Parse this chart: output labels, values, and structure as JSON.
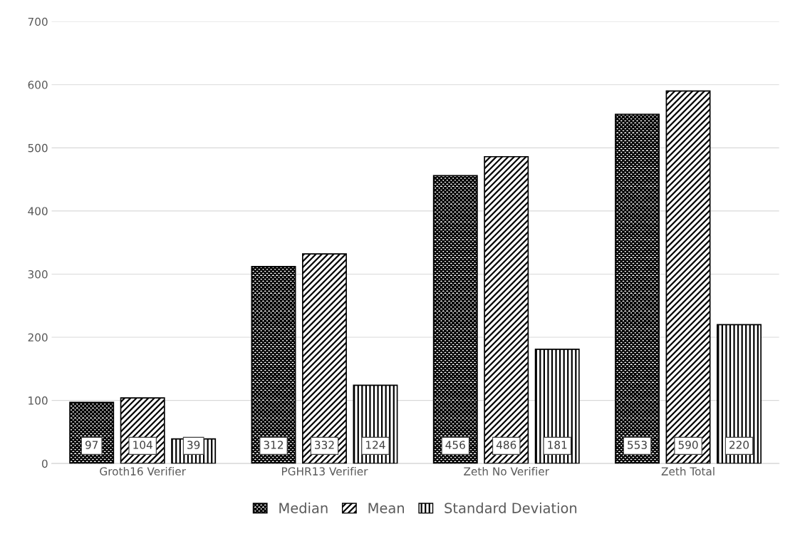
{
  "chart_data": {
    "type": "bar",
    "categories": [
      "Groth16 Verifier",
      "PGHR13 Verifier",
      "Zeth No Verifier",
      "Zeth Total"
    ],
    "series": [
      {
        "name": "Median",
        "color": "#000000",
        "values": [
          97,
          312,
          456,
          553
        ]
      },
      {
        "name": "Mean",
        "color": "#000000",
        "values": [
          104,
          332,
          486,
          590
        ]
      },
      {
        "name": "Standard Deviation",
        "color": "#000000",
        "values": [
          39,
          124,
          181,
          220
        ]
      }
    ],
    "ylim": [
      0,
      700
    ],
    "yticks": [
      0,
      100,
      200,
      300,
      400,
      500,
      600,
      700
    ],
    "grid": "y",
    "legend": "bottom",
    "data_labels": true
  }
}
